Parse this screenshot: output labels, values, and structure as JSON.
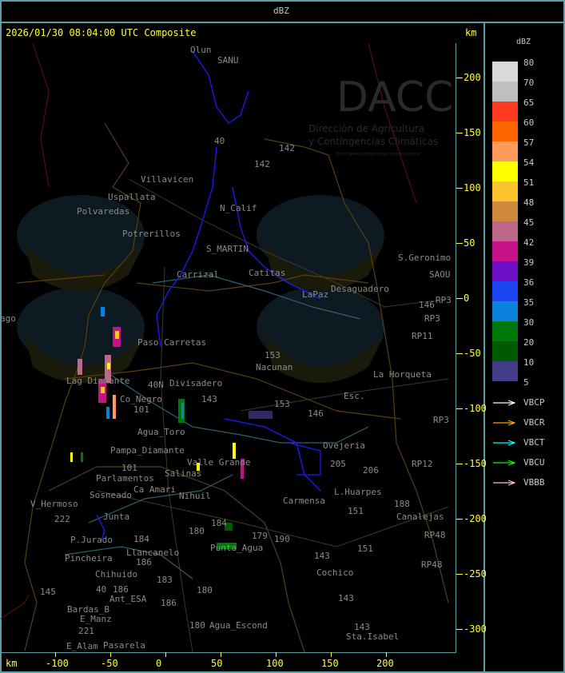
{
  "header": {
    "title": "dBZ"
  },
  "map": {
    "timestamp": "2026/01/30 08:04:00 UTC Composite",
    "unit_top": "km",
    "unit_bottom": "km",
    "y_ticks": [
      "200",
      "150",
      "100",
      "50",
      "0",
      "-50",
      "-100",
      "-150",
      "-200",
      "-250",
      "-300"
    ],
    "x_ticks": [
      "-100",
      "-50",
      "0",
      "50",
      "100",
      "150",
      "200"
    ],
    "places": [
      "Olun",
      "SANU",
      "40",
      "142",
      "142",
      "Villavicen",
      "Uspallata",
      "N_Calif",
      "Polvaredas",
      "Potrerillos",
      "S_MARTIN",
      "Carrizal",
      "Catitas",
      "Desaguadero",
      "LaPaz",
      "S.Geronimo",
      "SAOU",
      "146",
      "RP3",
      "RP3",
      "RP11",
      "153",
      "Nacunan",
      "La Horqueta",
      "Paso Carretas",
      "Lag Diamante",
      "Co_Negro",
      "Divisadero",
      "40N",
      "143",
      "101",
      "153",
      "146",
      "Esc.",
      "RP3",
      "Agua_Toro",
      "Pampa_Diamante",
      "101",
      "Valle Grande",
      "Ovejeria",
      "205",
      "206",
      "RP12",
      "Salinas",
      "Ca Amari",
      "Parlamentos",
      "Sosneado",
      "Nihuil",
      "L.Huarpes",
      "Carmensa",
      "188",
      "Canalejas",
      "V_Hermoso",
      "222",
      "Junta",
      "151",
      "180",
      "184",
      "184",
      "179",
      "190",
      "P.Jurado",
      "Pincheira",
      "Punta_Agua",
      "Llancanelo",
      "151",
      "143",
      "RP48",
      "RP48",
      "Chihuido",
      "186",
      "186",
      "183",
      "40",
      "Ant_ESA",
      "Cochico",
      "145",
      "Bardas_B",
      "180",
      "186",
      "143",
      "E_Manz",
      "221",
      "180",
      "Agua_Escond",
      "143",
      "Sta.Isabel",
      "E_Alam",
      "Pasarela",
      "ago"
    ],
    "watermark": {
      "logo": "DACC",
      "line1": "Dirección de Agricultura",
      "line2": "y Contingencias Climáticas",
      "url": "http://www.contingencias.mendoza.gov.ar"
    }
  },
  "legend": {
    "title": "dBZ",
    "levels": [
      {
        "label": "80",
        "color": "#d9d9d9"
      },
      {
        "label": "70",
        "color": "#bfbfbf"
      },
      {
        "label": "65",
        "color": "#ff3a1f"
      },
      {
        "label": "60",
        "color": "#ff6600"
      },
      {
        "label": "57",
        "color": "#ff9a5a"
      },
      {
        "label": "54",
        "color": "#ffff00"
      },
      {
        "label": "51",
        "color": "#fbc42f"
      },
      {
        "label": "48",
        "color": "#cd8a3d"
      },
      {
        "label": "45",
        "color": "#bd6886"
      },
      {
        "label": "42",
        "color": "#c8108a"
      },
      {
        "label": "39",
        "color": "#6e10c8"
      },
      {
        "label": "36",
        "color": "#1c46f0"
      },
      {
        "label": "35",
        "color": "#0a82dc"
      },
      {
        "label": "30",
        "color": "#00780a"
      },
      {
        "label": "20",
        "color": "#005a00"
      },
      {
        "label": "10",
        "color": "#463c8c"
      },
      {
        "label": "5",
        "color": ""
      }
    ],
    "radars": [
      {
        "label": "VBCP",
        "color": "#ffffff"
      },
      {
        "label": "VBCR",
        "color": "#ffa500"
      },
      {
        "label": "VBCT",
        "color": "#00ffff"
      },
      {
        "label": "VBCU",
        "color": "#00ff00"
      },
      {
        "label": "VBBB",
        "color": "#ffc0cb"
      }
    ]
  }
}
